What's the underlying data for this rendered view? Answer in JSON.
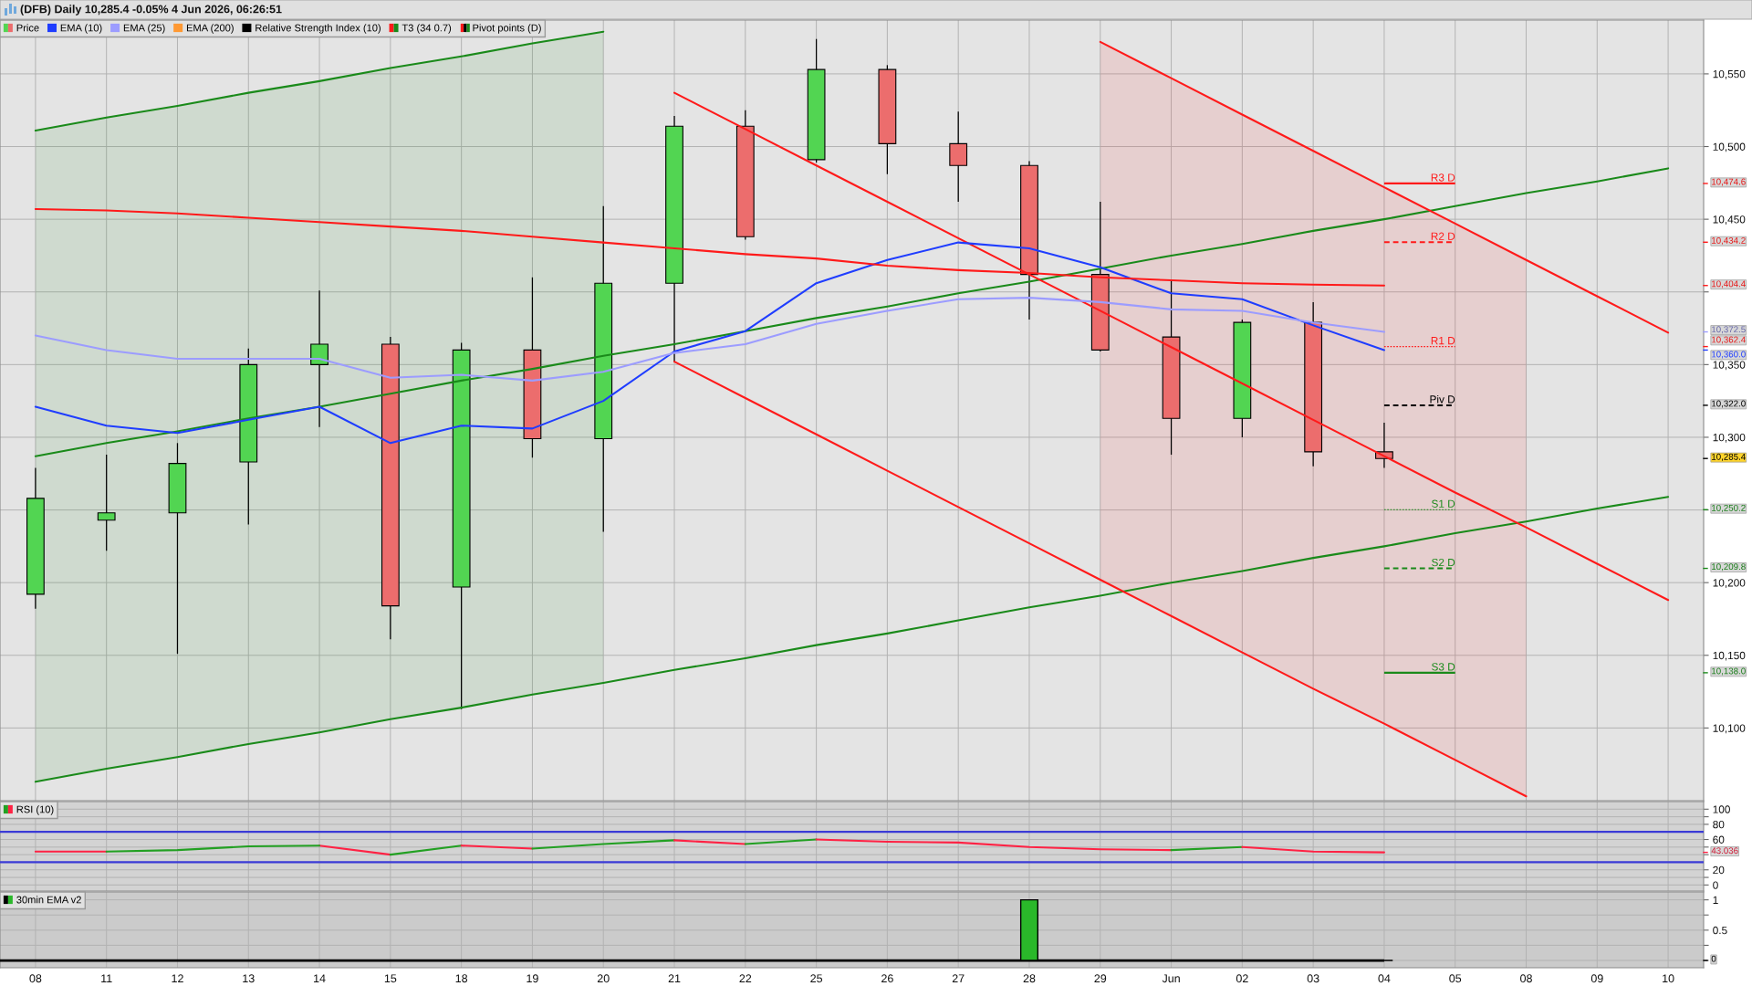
{
  "chart_data": [
    {
      "type": "candlestick",
      "title": "(DFB) Daily 10,285.4 -0.05% 4 Jun 2026, 06:26:51",
      "categories": [
        null,
        null,
        null,
        null,
        null,
        null,
        null,
        null,
        null,
        null,
        null,
        null,
        null,
        null,
        null,
        null,
        null,
        null,
        null,
        null,
        null,
        null,
        null,
        null
      ],
      "series": [
        {
          "name": "Price",
          "type": "candlestick",
          "ohlc": [
            [
              10192,
              10279,
              10182,
              10258
            ],
            [
              10243,
              10288,
              10222,
              10248
            ],
            [
              10248,
              10296,
              10151,
              10282
            ],
            [
              10283,
              10361,
              10240,
              10350
            ],
            [
              10350,
              10401,
              10307,
              10364
            ],
            [
              10364,
              10369,
              10161,
              10184
            ],
            [
              10197,
              10365,
              10113,
              10360
            ],
            [
              10360,
              10410,
              10286,
              10299
            ],
            [
              10299,
              10459,
              10235,
              10406
            ],
            [
              10406,
              10521,
              10352,
              10514
            ],
            [
              10514,
              10525,
              10436,
              10438
            ],
            [
              10491,
              10574,
              10489,
              10553
            ],
            [
              10553,
              10556,
              10481,
              10502
            ],
            [
              10502,
              10524,
              10462,
              10487
            ],
            [
              10487,
              10490,
              10381,
              10412
            ],
            [
              10412,
              10462,
              10359,
              10360
            ],
            [
              10369,
              10408,
              10288,
              10313
            ],
            [
              10313,
              10381,
              10300,
              10379
            ],
            [
              10379,
              10393,
              10280,
              10290
            ],
            [
              10290,
              10310,
              10279,
              10285.4
            ],
            null,
            null,
            null,
            null
          ],
          "colors": [
            "#52d552",
            "#52d552",
            "#52d552",
            "#52d552",
            "#52d552",
            "#ec6d6d",
            "#52d552",
            "#ec6d6d",
            "#52d552",
            "#52d552",
            "#ec6d6d",
            "#52d552",
            "#ec6d6d",
            "#ec6d6d",
            "#ec6d6d",
            "#ec6d6d",
            "#ec6d6d",
            "#52d552",
            "#ec6d6d",
            "#ec6d6d",
            null,
            null,
            null,
            null
          ]
        },
        {
          "name": "EMA (10)",
          "type": "line",
          "color": "#1f3dff",
          "values": [
            10321,
            10308,
            10303,
            10312,
            10321,
            10296,
            10308,
            10306,
            10325,
            10359,
            10373,
            10406,
            10422,
            10434,
            10430,
            10417,
            10399,
            10395,
            10377,
            10360.0,
            null,
            null,
            null,
            null
          ]
        },
        {
          "name": "EMA (25)",
          "type": "line",
          "color": "#9c9cff",
          "values": [
            10370,
            10360,
            10354,
            10354,
            10354,
            10341,
            10343,
            10339,
            10345,
            10358,
            10364,
            10378,
            10387,
            10395,
            10396,
            10393,
            10388,
            10387,
            10379,
            10372.5,
            null,
            null,
            null,
            null
          ]
        },
        {
          "name": "EMA (200)",
          "type": "line",
          "color": "#ff9933",
          "values": [
            null,
            null,
            null,
            null,
            null,
            null,
            null,
            null,
            null,
            null,
            null,
            null,
            null,
            null,
            null,
            null,
            null,
            null,
            null,
            null,
            null,
            null,
            null,
            null
          ]
        },
        {
          "name": "Relative Strength Index (10)",
          "type": "line",
          "color": "#000000",
          "values": [
            null,
            null,
            null,
            null,
            null,
            null,
            null,
            null,
            null,
            null,
            null,
            null,
            null,
            null,
            null,
            null,
            null,
            null,
            null,
            null,
            null,
            null,
            null,
            null
          ]
        },
        {
          "name": "T3 (34 0.7)",
          "type": "line",
          "color": "#ff1a1a",
          "values": [
            10457,
            10456,
            10454,
            10451,
            10448,
            10445,
            10442,
            10438,
            10434,
            10430,
            10426,
            10423,
            10418,
            10415,
            10413,
            10410,
            10408,
            10406,
            10405,
            10404.4,
            null,
            null,
            null,
            null
          ]
        },
        {
          "type": "line",
          "color": "#1a8a1a",
          "values": [
            10511,
            10520,
            10528,
            10537,
            10545,
            10554,
            10562,
            10571,
            10579,
            null,
            null,
            null,
            null,
            null,
            null,
            null,
            null,
            null,
            null,
            null,
            null,
            null,
            null,
            null
          ]
        },
        {
          "type": "line",
          "color": "#1a8a1a",
          "values": [
            10287,
            10296,
            10304,
            10313,
            10321,
            10330,
            10339,
            10347,
            10356,
            10364,
            10373,
            10382,
            10390,
            10399,
            10407,
            10416,
            10425,
            10433,
            10442,
            10450,
            10459,
            10468,
            10476,
            10485
          ],
          "lower": [
            10063,
            10072,
            10080,
            10089,
            10097,
            10106,
            10114,
            10123,
            10131,
            null,
            null,
            null,
            null,
            null,
            null,
            null,
            null,
            null,
            null,
            null,
            null,
            null,
            null,
            null
          ],
          "upper": [
            10511,
            10520,
            10528,
            10537,
            10545,
            10554,
            10562,
            10571,
            10579,
            null,
            null,
            null,
            null,
            null,
            null,
            null,
            null,
            null,
            null,
            null,
            null,
            null,
            null,
            null
          ]
        },
        {
          "type": "line",
          "color": "#1a8a1a",
          "values": [
            10063,
            10072,
            10080,
            10089,
            10097,
            10106,
            10114,
            10123,
            10131,
            10140,
            10148,
            10157,
            10165,
            10174,
            10183,
            10191,
            10200,
            10208,
            10217,
            10225,
            10234,
            10242,
            10251,
            10259
          ]
        },
        {
          "type": "line",
          "color": "#ff1a1a",
          "values": [
            null,
            null,
            null,
            null,
            null,
            null,
            null,
            null,
            null,
            null,
            null,
            null,
            null,
            null,
            null,
            10572,
            10547,
            10522,
            10497,
            10472,
            10447,
            10422,
            10397,
            10372
          ]
        },
        {
          "type": "line",
          "color": "#ff1a1a",
          "values": [
            null,
            null,
            null,
            null,
            null,
            null,
            null,
            null,
            null,
            10537,
            10512,
            10487,
            10462,
            10437,
            10412,
            10387,
            10362,
            10337,
            10312,
            10287,
            10262,
            10238,
            10213,
            10188
          ],
          "lower": [
            null,
            null,
            null,
            null,
            null,
            null,
            null,
            null,
            null,
            null,
            null,
            null,
            null,
            null,
            null,
            10202,
            10177,
            10152,
            10127,
            10103,
            10078,
            10053,
            null,
            null
          ],
          "upper": [
            null,
            null,
            null,
            null,
            null,
            null,
            null,
            null,
            null,
            null,
            null,
            null,
            null,
            null,
            null,
            10572,
            10547,
            10522,
            10497,
            10472,
            10447,
            10422,
            null,
            null
          ]
        },
        {
          "type": "line",
          "color": "#ff1a1a",
          "values": [
            null,
            null,
            null,
            null,
            null,
            null,
            null,
            null,
            null,
            10352,
            10327,
            10302,
            10277,
            10252,
            10227,
            10202,
            10177,
            10152,
            10127,
            10103,
            10078,
            10053,
            null,
            null
          ]
        }
      ],
      "ylim": [
        10050,
        10587
      ],
      "yticks": [
        {
          "value": 10100,
          "label": "10,100"
        },
        {
          "value": 10150,
          "label": "10,150"
        },
        {
          "value": 10200,
          "label": "10,200"
        },
        {
          "value": 10250,
          "label": null
        },
        {
          "value": 10300,
          "label": "10,300"
        },
        {
          "value": 10350,
          "label": "10,350"
        },
        {
          "value": 10400,
          "label": null
        },
        {
          "value": 10450,
          "label": "10,450"
        },
        {
          "value": 10500,
          "label": "10,500"
        },
        {
          "value": 10550,
          "label": "10,550"
        }
      ],
      "ref_lines": [
        {
          "axis": "y",
          "value": 10474.6,
          "label": "R3 D",
          "color": "#ff1a1a",
          "line_style": "solid"
        },
        {
          "axis": "y",
          "value": 10434.2,
          "label": "R2 D",
          "color": "#ff1a1a",
          "line_style": "dashed"
        },
        {
          "axis": "y",
          "value": 10362.4,
          "label": "R1 D",
          "color": "#ff1a1a",
          "line_style": "dotted"
        },
        {
          "axis": "y",
          "value": 10322.0,
          "label": "Piv D",
          "color": "#000000",
          "line_style": "dashed"
        },
        {
          "axis": "y",
          "value": 10250.2,
          "label": "S1 D",
          "color": "#1a8a1a",
          "line_style": "dotted"
        },
        {
          "axis": "y",
          "value": 10209.8,
          "label": "S2 D",
          "color": "#1a8a1a",
          "line_style": "dashed"
        },
        {
          "axis": "y",
          "value": 10138.0,
          "label": "S3 D",
          "color": "#1a8a1a",
          "line_style": "solid"
        }
      ],
      "annotations": [
        "Pivot points (D)",
        "10,285.4",
        "10,474.6",
        "10,434.2",
        "10,362.4",
        "10,322.0",
        "10,250.2",
        "10,209.8",
        "10,138.0",
        "10,360.0",
        "10,372.5",
        "10,404.4"
      ],
      "grid": true,
      "legend": "top left",
      "tick_labels": "y"
    },
    {
      "type": "line",
      "categories": [
        null,
        null,
        null,
        null,
        null,
        null,
        null,
        null,
        null,
        null,
        null,
        null,
        null,
        null,
        null,
        null,
        null,
        null,
        null,
        null,
        null,
        null,
        null,
        null
      ],
      "series": [
        {
          "name": "RSI (10)",
          "color": "#22a022",
          "values": [
            null,
            44,
            46,
            51,
            52,
            null,
            null,
            null,
            null,
            null,
            null,
            null,
            null,
            null,
            null,
            null,
            null,
            null,
            null,
            null,
            null,
            null,
            null,
            null
          ]
        },
        {
          "color": "#ff2244",
          "values": [
            44,
            44,
            null,
            null,
            null,
            null,
            null,
            null,
            null,
            null,
            null,
            null,
            null,
            null,
            null,
            null,
            null,
            null,
            null,
            null,
            null,
            null,
            null,
            null
          ]
        },
        {
          "color": "#ff2244",
          "values": [
            null,
            null,
            null,
            null,
            52,
            40,
            null,
            null,
            null,
            null,
            null,
            null,
            null,
            null,
            null,
            null,
            null,
            null,
            null,
            null,
            null,
            null,
            null,
            null
          ]
        },
        {
          "color": "#22a022",
          "values": [
            null,
            null,
            null,
            null,
            null,
            40,
            52,
            null,
            null,
            null,
            null,
            null,
            null,
            null,
            null,
            null,
            null,
            null,
            null,
            null,
            null,
            null,
            null,
            null
          ]
        },
        {
          "color": "#ff2244",
          "values": [
            null,
            null,
            null,
            null,
            null,
            null,
            52,
            48,
            null,
            null,
            null,
            null,
            null,
            null,
            null,
            null,
            null,
            null,
            null,
            null,
            null,
            null,
            null,
            null
          ]
        },
        {
          "color": "#22a022",
          "values": [
            null,
            null,
            null,
            null,
            null,
            null,
            null,
            48,
            54,
            59,
            null,
            null,
            null,
            null,
            null,
            null,
            null,
            null,
            null,
            null,
            null,
            null,
            null,
            null
          ]
        },
        {
          "color": "#ff2244",
          "values": [
            null,
            null,
            null,
            null,
            null,
            null,
            null,
            null,
            null,
            59,
            54,
            null,
            null,
            null,
            null,
            null,
            null,
            null,
            null,
            null,
            null,
            null,
            null,
            null
          ]
        },
        {
          "color": "#22a022",
          "values": [
            null,
            null,
            null,
            null,
            null,
            null,
            null,
            null,
            null,
            null,
            54,
            60,
            null,
            null,
            null,
            null,
            null,
            null,
            null,
            null,
            null,
            null,
            null,
            null
          ]
        },
        {
          "color": "#ff2244",
          "values": [
            null,
            null,
            null,
            null,
            null,
            null,
            null,
            null,
            null,
            null,
            null,
            60,
            57,
            56,
            50,
            47,
            46,
            null,
            null,
            null,
            null,
            null,
            null,
            null
          ]
        },
        {
          "color": "#22a022",
          "values": [
            null,
            null,
            null,
            null,
            null,
            null,
            null,
            null,
            null,
            null,
            null,
            null,
            null,
            null,
            null,
            null,
            46,
            50,
            null,
            null,
            null,
            null,
            null,
            null
          ]
        },
        {
          "color": "#ff2244",
          "values": [
            null,
            null,
            null,
            null,
            null,
            null,
            null,
            null,
            null,
            null,
            null,
            null,
            null,
            null,
            null,
            null,
            null,
            50,
            44,
            43.036,
            null,
            null,
            null,
            null
          ]
        }
      ],
      "ylim": [
        -8,
        110
      ],
      "yticks": [
        0,
        {
          "value": 10,
          "label": null
        },
        20,
        {
          "value": 40,
          "label": null
        },
        {
          "value": 50,
          "label": null
        },
        60,
        80,
        {
          "value": 90,
          "label": null
        },
        100
      ],
      "ref_lines": [
        {
          "axis": "y",
          "value": 70,
          "color": "#3b3bd6",
          "line_style": "solid"
        },
        {
          "axis": "y",
          "value": 30,
          "color": "#3b3bd6",
          "line_style": "solid"
        }
      ],
      "annotations": [
        "43.036"
      ],
      "grid": true,
      "legend": "top left",
      "tick_labels": "y"
    },
    {
      "type": "bar",
      "categories": [
        "08",
        "11",
        "12",
        "13",
        "14",
        "15",
        "18",
        "19",
        "20",
        "21",
        "22",
        "25",
        "26",
        "27",
        "28",
        "29",
        "Jun",
        "02",
        "03",
        "04",
        "05",
        "08",
        "09",
        "10"
      ],
      "series": [
        {
          "name": "30min EMA v2",
          "values": [
            0,
            0,
            0,
            0,
            0,
            0,
            0,
            0,
            0,
            0,
            0,
            0,
            0,
            0,
            1,
            0,
            0,
            0,
            0,
            0,
            null,
            null,
            null,
            null
          ],
          "colors": [
            "#000000",
            "#000000",
            "#000000",
            "#000000",
            "#000000",
            "#000000",
            "#000000",
            "#000000",
            "#000000",
            "#000000",
            "#000000",
            "#000000",
            "#000000",
            "#000000",
            "#2ab82a",
            "#000000",
            "#000000",
            "#000000",
            "#000000",
            "#000000",
            null,
            null,
            null,
            null
          ]
        }
      ],
      "ylim": [
        -0.12,
        1.13
      ],
      "yticks": [
        {
          "value": 0,
          "label": null
        },
        {
          "value": 0.25,
          "label": null
        },
        0.5,
        {
          "value": 0.75,
          "label": null
        },
        1
      ],
      "annotations": [
        "0"
      ],
      "grid": true,
      "legend": "top left"
    }
  ]
}
